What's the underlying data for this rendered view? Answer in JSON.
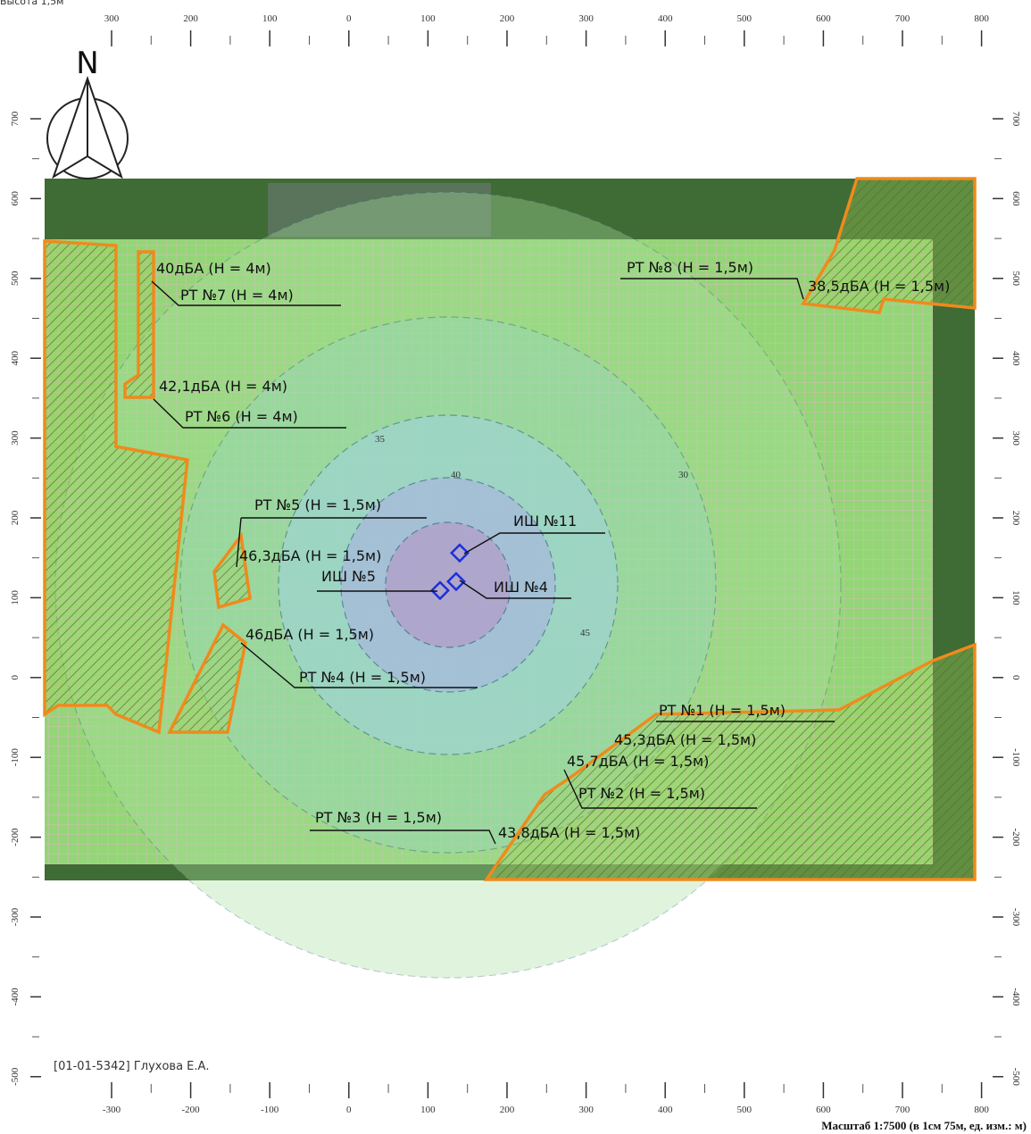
{
  "header": {
    "height_note": "Высота 1,5м"
  },
  "north": "N",
  "axes": {
    "top": [
      "300",
      "200",
      "100",
      "0",
      "100",
      "200",
      "300",
      "400",
      "500",
      "600",
      "700",
      "800"
    ],
    "bottom": [
      "-300",
      "-200",
      "-100",
      "0",
      "100",
      "200",
      "300",
      "400",
      "500",
      "600",
      "700",
      "800"
    ],
    "left": [
      "700",
      "600",
      "500",
      "400",
      "300",
      "200",
      "100",
      "0",
      "-100",
      "-200",
      "-300",
      "-400",
      "-500"
    ],
    "right": [
      "700",
      "600",
      "500",
      "400",
      "300",
      "200",
      "100",
      "0",
      "-100",
      "-200",
      "-300",
      "-400",
      "-500"
    ]
  },
  "contours": [
    "45",
    "40",
    "35",
    "30"
  ],
  "points": [
    {
      "name": "РТ №7 (Н = 4м)",
      "level": "40дБА (Н = 4м)"
    },
    {
      "name": "РТ №6 (Н = 4м)",
      "level": "42,1дБА (Н = 4м)"
    },
    {
      "name": "РТ №8 (Н = 1,5м)",
      "level": "38,5дБА (Н = 1,5м)"
    },
    {
      "name": "РТ №5 (Н = 1,5м)",
      "level": "46,3дБА (Н = 1,5м)"
    },
    {
      "name": "РТ №4 (Н = 1,5м)",
      "level": "46дБА (Н = 1,5м)"
    },
    {
      "name": "РТ №1 (Н = 1,5м)",
      "level": "45,3дБА (Н = 1,5м)"
    },
    {
      "name": "РТ №2 (Н = 1,5м)",
      "level": "45,7дБА (Н = 1,5м)"
    },
    {
      "name": "РТ №3 (Н = 1,5м)",
      "level": "43,8дБА (Н = 1,5м)"
    }
  ],
  "sources": [
    "ИШ №11",
    "ИШ №5",
    "ИШ №4"
  ],
  "footer": {
    "author": "[01-01-5342] Глухова Е.А.",
    "scale": "Масштаб 1:7500 (в 1см 75м, ед. изм.: м)"
  }
}
